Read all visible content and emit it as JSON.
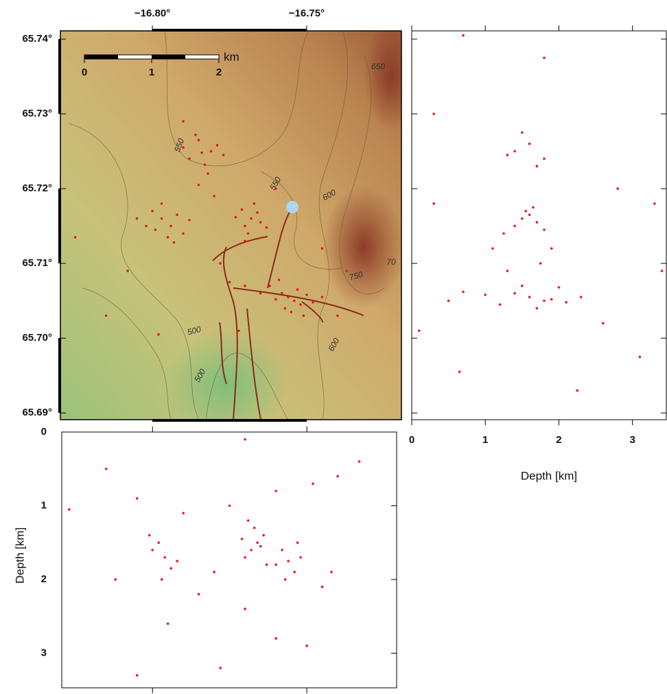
{
  "chart_data": [
    {
      "type": "scatter",
      "color": "#e8191a",
      "xlim": [
        -16.8298,
        -16.7193
      ],
      "ylim": [
        65.6891,
        65.7411
      ],
      "xticks": [
        {
          "value": -16.8,
          "label": "−16.80°"
        },
        {
          "value": -16.75,
          "label": "−16.75°"
        }
      ],
      "yticks": [
        {
          "value": 65.69,
          "label": "65.69°"
        },
        {
          "value": 65.7,
          "label": "65.70°"
        },
        {
          "value": 65.71,
          "label": "65.71°"
        },
        {
          "value": 65.72,
          "label": "65.72°"
        },
        {
          "value": 65.73,
          "label": "65.73°"
        },
        {
          "value": 65.74,
          "label": "65.74°"
        }
      ],
      "scale_labels": [
        "0",
        "1",
        "2"
      ],
      "scale_unit": "km",
      "annotations": [
        "550",
        "550",
        "600",
        "650",
        "750",
        "70",
        "500",
        "500",
        "600"
      ],
      "x": [
        -16.785,
        -16.781,
        -16.788,
        -16.779,
        -16.783,
        -16.786,
        -16.777,
        -16.79,
        -16.782,
        -16.784,
        -16.797,
        -16.794,
        -16.799,
        -16.792,
        -16.795,
        -16.8,
        -16.79,
        -16.797,
        -16.802,
        -16.793,
        -16.805,
        -16.788,
        -16.768,
        -16.77,
        -16.766,
        -16.771,
        -16.765,
        -16.769,
        -16.767,
        -16.773,
        -16.763,
        -16.77,
        -16.756,
        -16.754,
        -16.758,
        -16.752,
        -16.757,
        -16.753,
        -16.76,
        -16.75,
        -16.755,
        -16.762,
        -16.748,
        -16.759,
        -16.745,
        -16.765,
        -16.751,
        -16.77,
        -16.825,
        -16.815,
        -16.808,
        -16.778,
        -16.775,
        -16.785,
        -16.745,
        -16.74,
        -16.76,
        -16.772,
        -16.79,
        -16.737,
        -16.798,
        -16.78
      ],
      "y": [
        65.7265,
        65.725,
        65.724,
        65.7258,
        65.7232,
        65.7272,
        65.7245,
        65.7255,
        65.722,
        65.7248,
        65.716,
        65.715,
        65.7145,
        65.7165,
        65.7135,
        65.717,
        65.714,
        65.718,
        65.715,
        65.7128,
        65.716,
        65.7158,
        65.716,
        65.715,
        65.7168,
        65.7172,
        65.7155,
        65.714,
        65.718,
        65.7162,
        65.7148,
        65.713,
        65.7055,
        65.705,
        65.706,
        65.7045,
        65.704,
        65.7065,
        65.7052,
        65.7058,
        65.7035,
        65.707,
        65.7048,
        65.7078,
        65.7055,
        65.706,
        65.703,
        65.707,
        65.7135,
        65.703,
        65.709,
        65.71,
        65.7075,
        65.7205,
        65.712,
        65.703,
        65.72,
        65.701,
        65.729,
        65.709,
        65.7005,
        65.719
      ]
    },
    {
      "type": "scatter",
      "color": "#e8191a",
      "xlim": [
        0,
        3.46
      ],
      "ylim": [
        65.6891,
        65.7411
      ],
      "xticks": [
        0,
        1,
        2,
        3
      ],
      "yticks": [
        65.69,
        65.7,
        65.71,
        65.72,
        65.73,
        65.74
      ],
      "xlabel": "Depth [km]",
      "x": [
        1.6,
        1.4,
        1.8,
        1.5,
        1.7,
        1.3,
        1.6,
        1.5,
        1.7,
        1.4,
        1.55,
        1.8,
        1.25,
        1.65,
        1.6,
        1.8,
        1.4,
        1.9,
        1.0,
        2.1,
        0.7,
        1.7,
        1.2,
        2.3,
        0.5,
        1.5,
        2.0,
        1.3,
        1.75,
        1.1,
        1.9,
        0.1,
        0.65,
        2.25,
        3.1,
        3.3,
        2.8,
        0.3,
        1.8,
        0.7,
        3.4,
        2.6,
        0.3
      ],
      "y": [
        65.726,
        65.725,
        65.724,
        65.7275,
        65.723,
        65.7245,
        65.7165,
        65.716,
        65.7155,
        65.715,
        65.717,
        65.7145,
        65.714,
        65.7175,
        65.7055,
        65.705,
        65.706,
        65.7052,
        65.7058,
        65.7048,
        65.7062,
        65.704,
        65.7045,
        65.7055,
        65.705,
        65.707,
        65.7068,
        65.709,
        65.71,
        65.712,
        65.712,
        65.701,
        65.6955,
        65.693,
        65.6975,
        65.718,
        65.72,
        65.73,
        65.7375,
        65.7405,
        65.709,
        65.702,
        65.718
      ]
    },
    {
      "type": "scatter",
      "color": "#e8191a",
      "xlim": [
        -16.8294,
        -16.7209
      ],
      "ylim": [
        0,
        3.47
      ],
      "y_inverted": true,
      "xticks": [
        -16.8,
        -16.75
      ],
      "yticks": [
        0,
        1,
        2,
        3
      ],
      "ylabel": "Depth [km]",
      "x": [
        -16.796,
        -16.798,
        -16.794,
        -16.8,
        -16.792,
        -16.797,
        -16.801,
        -16.766,
        -16.768,
        -16.764,
        -16.77,
        -16.767,
        -16.763,
        -16.769,
        -16.765,
        -16.771,
        -16.756,
        -16.758,
        -16.754,
        -16.757,
        -16.753,
        -16.76,
        -16.752,
        -16.76,
        -16.748,
        -16.775,
        -16.78,
        -16.785,
        -16.77,
        -16.745,
        -16.79,
        -16.805,
        -16.812,
        -16.815,
        -16.827,
        -16.74,
        -16.733,
        -16.76,
        -16.778,
        -16.805,
        -16.742,
        -16.75,
        -16.77,
        -16.795
      ],
      "y": [
        1.7,
        1.5,
        1.85,
        1.6,
        1.75,
        2.0,
        1.4,
        1.5,
        1.6,
        1.4,
        1.7,
        1.3,
        1.8,
        1.2,
        1.55,
        1.45,
        1.75,
        1.6,
        1.9,
        2.0,
        1.5,
        1.8,
        1.7,
        0.8,
        0.7,
        1.0,
        1.9,
        2.2,
        2.4,
        2.1,
        1.1,
        0.9,
        2.0,
        0.5,
        1.05,
        0.6,
        0.4,
        2.8,
        3.2,
        3.3,
        1.9,
        2.9,
        0.1,
        2.6
      ]
    }
  ]
}
